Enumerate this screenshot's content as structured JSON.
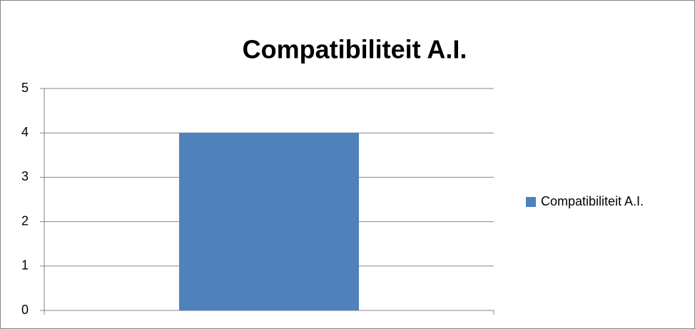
{
  "chart_data": {
    "type": "bar",
    "title": "Compatibiliteit A.I.",
    "categories": [
      null
    ],
    "series": [
      {
        "name": "Compatibiliteit A.I.",
        "color": "#4f81bd",
        "values": [
          4
        ]
      }
    ],
    "ylim": [
      0,
      5
    ],
    "yticks": [
      0,
      1,
      2,
      3,
      4,
      5
    ],
    "grid": true,
    "legend": "right"
  }
}
